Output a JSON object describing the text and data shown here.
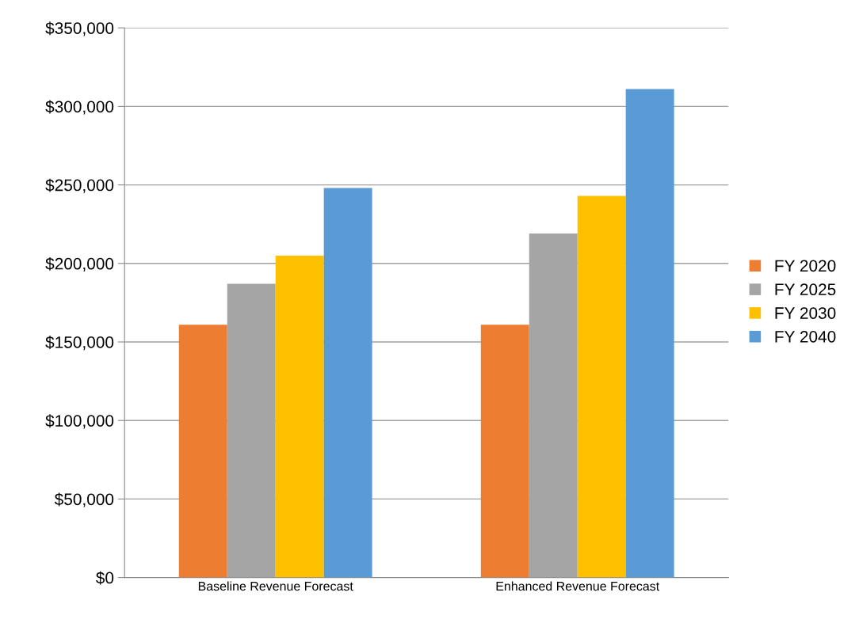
{
  "chart_data": {
    "type": "bar",
    "categories": [
      "Baseline Revenue Forecast",
      "Enhanced Revenue Forecast"
    ],
    "series": [
      {
        "name": "FY 2020",
        "color": "#ed7d31",
        "values": [
          161000,
          161000
        ]
      },
      {
        "name": "FY 2025",
        "color": "#a5a5a5",
        "values": [
          187000,
          219000
        ]
      },
      {
        "name": "FY 2030",
        "color": "#ffc000",
        "values": [
          205000,
          243000
        ]
      },
      {
        "name": "FY 2040",
        "color": "#5b9bd5",
        "values": [
          248000,
          311000
        ]
      }
    ],
    "ylim": [
      0,
      350000
    ],
    "yticks": [
      {
        "value": 0,
        "label": "$0"
      },
      {
        "value": 50000,
        "label": "$50,000"
      },
      {
        "value": 100000,
        "label": "$100,000"
      },
      {
        "value": 150000,
        "label": "$150,000"
      },
      {
        "value": 200000,
        "label": "$200,000"
      },
      {
        "value": 250000,
        "label": "$250,000"
      },
      {
        "value": 300000,
        "label": "$300,000"
      },
      {
        "value": 350000,
        "label": "$350,000"
      }
    ],
    "grid": "y",
    "legend": "right"
  }
}
